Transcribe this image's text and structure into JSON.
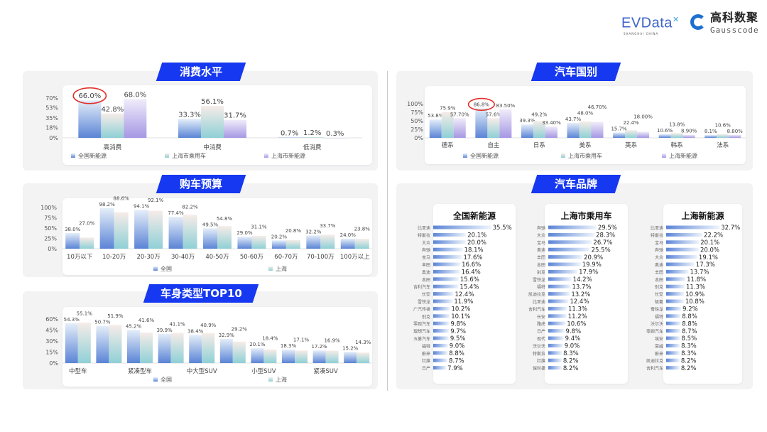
{
  "logos": {
    "evdata": "EVData",
    "evdata_sub": "SHANGHAI CHINA",
    "gausscode_cn": "高科数聚",
    "gausscode_en": "Gausscode"
  },
  "sections": {
    "consumption": "消费水平",
    "budget": "购车预算",
    "body_type": "车身类型TOP10",
    "country": "汽车国别",
    "brand": "汽车品牌"
  },
  "colors": {
    "ribbon": "#1638f0",
    "national": "#5b84d6",
    "sh_passenger": "#8fd0d6",
    "sh_nev": "#a697e4",
    "highlight_circle": "#e0302a"
  },
  "chart_data": [
    {
      "id": "consumption",
      "type": "bar",
      "title": "消费水平",
      "categories": [
        "高消费",
        "中消费",
        "低消费"
      ],
      "series": [
        {
          "name": "全国新能源",
          "values": [
            66.0,
            33.3,
            0.7
          ]
        },
        {
          "name": "上海市乘用车",
          "values": [
            42.8,
            56.1,
            1.2
          ]
        },
        {
          "name": "上海市新能源",
          "values": [
            68.0,
            31.7,
            0.3
          ]
        }
      ],
      "yticks": [
        0,
        18,
        35,
        53,
        70
      ],
      "ylim": [
        0,
        70
      ],
      "unit": "%",
      "legend": "bottom",
      "highlight": {
        "series": 0,
        "category": 0
      }
    },
    {
      "id": "budget",
      "type": "bar",
      "title": "购车预算",
      "categories": [
        "10万以下",
        "10-20万",
        "20-30万",
        "30-40万",
        "40-50万",
        "50-60万",
        "60-70万",
        "70-100万",
        "100万以上"
      ],
      "series": [
        {
          "name": "全国",
          "values": [
            38.0,
            98.2,
            94.1,
            77.4,
            49.5,
            29.0,
            20.2,
            32.2,
            24.0
          ]
        },
        {
          "name": "上海",
          "values": [
            27.0,
            88.6,
            92.1,
            82.2,
            54.8,
            31.1,
            20.8,
            33.7,
            23.8
          ]
        }
      ],
      "yticks": [
        0,
        25,
        50,
        75,
        100
      ],
      "ylim": [
        0,
        100
      ],
      "unit": "%",
      "legend": "bottom"
    },
    {
      "id": "body_type",
      "type": "bar",
      "title": "车身类型TOP10",
      "categories": [
        "中型车",
        "",
        "紧凑型车",
        "",
        "中大型SUV",
        "",
        "小型SUV",
        "",
        "紧凑SUV",
        ""
      ],
      "series": [
        {
          "name": "全国",
          "values": [
            54.3,
            50.7,
            45.2,
            39.9,
            38.4,
            32.9,
            20.1,
            18.3,
            17.2,
            15.2
          ]
        },
        {
          "name": "上海",
          "values": [
            55.1,
            51.9,
            41.6,
            41.1,
            40.9,
            29.2,
            18.4,
            17.1,
            16.9,
            14.3
          ]
        }
      ],
      "yticks": [
        0,
        15,
        30,
        45,
        60
      ],
      "ylim": [
        0,
        60
      ],
      "unit": "%",
      "legend": "bottom"
    },
    {
      "id": "country",
      "type": "bar",
      "title": "汽车国别",
      "categories": [
        "德系",
        "自主",
        "日系",
        "美系",
        "英系",
        "韩系",
        "法系"
      ],
      "series": [
        {
          "name": "全国新能源",
          "values": [
            53.8,
            86.8,
            39.3,
            43.7,
            15.7,
            10.6,
            8.1
          ],
          "labels": [
            "53.8%",
            "86.8%",
            "39.3%",
            "43.7%",
            "15.7%",
            "10.6%",
            "8.1%"
          ]
        },
        {
          "name": "上海市乘用车",
          "values": [
            75.9,
            57.6,
            49.2,
            48.0,
            22.4,
            13.8,
            10.6
          ],
          "labels": [
            "75.9%",
            "57.6%",
            "49.2%",
            "48.0%",
            "22.4%",
            "13.8%",
            "10.6%"
          ]
        },
        {
          "name": "上海新能源",
          "values": [
            57.7,
            83.5,
            33.4,
            46.7,
            18.0,
            8.9,
            8.8
          ],
          "labels": [
            "57.70%",
            "83.50%",
            "33.40%",
            "46.70%",
            "18.00%",
            "8.90%",
            "8.80%"
          ]
        }
      ],
      "yticks": [
        0,
        25,
        50,
        75,
        100
      ],
      "ylim": [
        0,
        100
      ],
      "unit": "%",
      "legend": "bottom",
      "highlight": {
        "series": 0,
        "category": 1
      }
    },
    {
      "id": "brand_national_nev",
      "type": "bar",
      "orientation": "horizontal",
      "title": "全国新能源",
      "categories": [
        "比亚迪",
        "特斯拉",
        "大众",
        "奔驰",
        "宝马",
        "丰田",
        "奥迪",
        "本田",
        "吉利汽车",
        "长安",
        "雪铁龙",
        "广汽传祺",
        "别克",
        "零跑汽车",
        "理想汽车",
        "五菱汽车",
        "福特",
        "蔚来",
        "红旗",
        "日产"
      ],
      "values": [
        35.5,
        20.1,
        20.0,
        18.1,
        17.6,
        16.6,
        16.4,
        15.6,
        15.4,
        12.4,
        11.9,
        10.2,
        10.1,
        9.8,
        9.7,
        9.5,
        9.0,
        8.8,
        8.7,
        7.9
      ],
      "unit": "%"
    },
    {
      "id": "brand_sh_passenger",
      "type": "bar",
      "orientation": "horizontal",
      "title": "上海市乘用车",
      "categories": [
        "奔驰",
        "大众",
        "宝马",
        "奥迪",
        "丰田",
        "本田",
        "别克",
        "雪铁龙",
        "福特",
        "凯迪拉克",
        "比亚迪",
        "吉利汽车",
        "长安",
        "路虎",
        "日产",
        "现代",
        "沃尔沃",
        "特斯拉",
        "红旗",
        "保时捷"
      ],
      "values": [
        29.5,
        28.3,
        26.7,
        25.5,
        20.9,
        19.9,
        17.9,
        14.2,
        13.7,
        13.2,
        12.4,
        11.3,
        11.2,
        10.6,
        9.8,
        9.4,
        9.0,
        8.3,
        8.2,
        8.2
      ],
      "unit": "%"
    },
    {
      "id": "brand_sh_nev",
      "type": "bar",
      "orientation": "horizontal",
      "title": "上海新能源",
      "categories": [
        "比亚迪",
        "特斯拉",
        "宝马",
        "奔驰",
        "大众",
        "奥迪",
        "丰田",
        "本田",
        "别克",
        "长安",
        "极氪",
        "雪铁龙",
        "福特",
        "沃尔沃",
        "零跑汽车",
        "埃安",
        "荣威",
        "蔚来",
        "凯迪拉克",
        "吉利汽车"
      ],
      "values": [
        32.7,
        22.2,
        20.1,
        20.0,
        19.1,
        17.3,
        13.7,
        11.8,
        11.3,
        10.9,
        10.8,
        9.2,
        8.8,
        8.8,
        8.7,
        8.5,
        8.3,
        8.3,
        8.2,
        8.2
      ],
      "unit": "%"
    }
  ]
}
